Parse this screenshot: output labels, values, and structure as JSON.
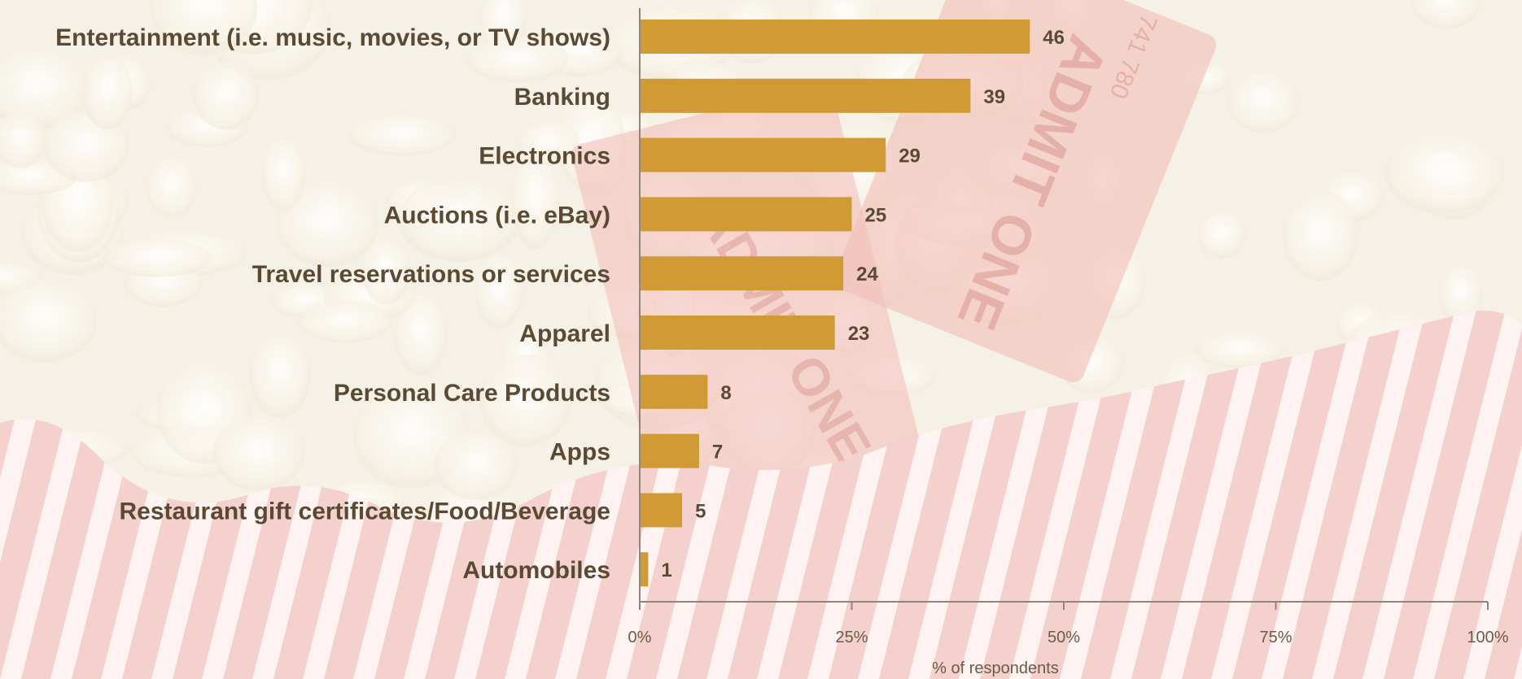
{
  "chart_data": {
    "type": "bar",
    "orientation": "horizontal",
    "categories": [
      "Entertainment (i.e. music, movies, or TV shows)",
      "Banking",
      "Electronics",
      "Auctions (i.e. eBay)",
      "Travel reservations or services",
      "Apparel",
      "Personal Care Products",
      "Apps",
      "Restaurant gift certificates/Food/Beverage",
      "Automobiles"
    ],
    "values": [
      46,
      39,
      29,
      25,
      24,
      23,
      8,
      7,
      5,
      1
    ],
    "value_labels": [
      "46",
      "39",
      "29",
      "25",
      "24",
      "23",
      "8",
      "7",
      "5",
      "1"
    ],
    "xlabel": "% of  respondents",
    "xlim": [
      0,
      100
    ],
    "x_ticks": [
      0,
      25,
      50,
      75,
      100
    ],
    "x_tick_labels": [
      "0%",
      "25%",
      "50%",
      "75%",
      "100%"
    ],
    "grid": false,
    "bar_color": "#d09b35",
    "label_color": "#5b4a33",
    "tick_color": "#6b5c48"
  },
  "background": {
    "ticket_front_text": "ADMIT ONE",
    "ticket_back_text": "ADMIT ONE",
    "ticket_serial": "741 780",
    "popcorn_color": "#f4efe3",
    "ticket_color": "#f0b8b0",
    "stripe_color": "#f1c2bd"
  }
}
